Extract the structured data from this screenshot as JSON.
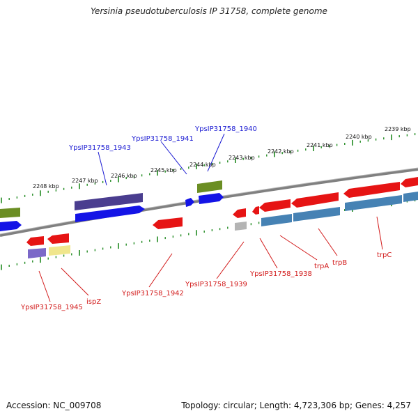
{
  "title": "Yersinia pseudotuberculosis IP 31758, complete genome",
  "footer": {
    "accession": "Accession: NC_009708",
    "summary": "Topology: circular; Length: 4,723,306 bp; Genes: 4,257"
  },
  "scale_labels": [
    "2248 kbp",
    "2247 kbp",
    "2246 kbp",
    "2245 kbp",
    "2244 kbp",
    "2243 kbp",
    "2242 kbp",
    "2241 kbp",
    "2240 kbp",
    "2239 kbp"
  ],
  "gene_labels": {
    "forward": [
      "YpsIP31758_1943",
      "YpsIP31758_1941",
      "YpsIP31758_1940"
    ],
    "reverse": [
      "YpsIP31758_1945",
      "ispZ",
      "YpsIP31758_1942",
      "YpsIP31758_1939",
      "YpsIP31758_1938",
      "trpA",
      "trpB",
      "trpC"
    ]
  },
  "colors": {
    "forward_label": "#1a1ad2",
    "reverse_label": "#d21a1a",
    "forward_cds": "#1414e6",
    "reverse_cds": "#e61414",
    "cog_purple": "#4a3d8f",
    "cog_olive": "#6b8e23",
    "cog_steelblue": "#4682b4",
    "cog_gray": "#b4b4b4",
    "cog_lavender": "#7b68c8",
    "cog_khaki": "#f0e68c",
    "scale_tick": "#228b22",
    "backbone": "#808080"
  }
}
